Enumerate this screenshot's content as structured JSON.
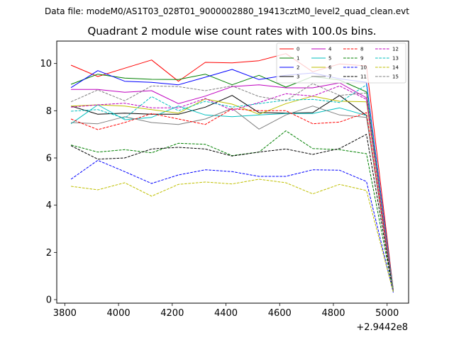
{
  "chart_data": {
    "type": "line",
    "suptitle": "Data file: modeM0/AS1T03_028T01_9000002880_19413cztM0_level2_quad_clean.evt",
    "title": "Quadrant 2 module wise count rates with 100.0s bins.",
    "xlabel": "",
    "ylabel": "",
    "offset_text": "+2.9442e8",
    "xlim": [
      3770,
      5080
    ],
    "ylim": [
      -0.15,
      10.95
    ],
    "xticks": [
      3800,
      4000,
      4200,
      4400,
      4600,
      4800,
      5000
    ],
    "yticks": [
      0,
      2,
      4,
      6,
      8,
      10
    ],
    "grid": false,
    "legend_position": "top-right",
    "x": [
      3823,
      3923,
      4023,
      4123,
      4223,
      4323,
      4423,
      4523,
      4623,
      4723,
      4823,
      4923,
      5023
    ],
    "series": [
      {
        "name": "0",
        "color": "#ff0000",
        "dash": "solid",
        "values": [
          9.93,
          9.45,
          9.8,
          10.15,
          9.25,
          10.05,
          10.03,
          10.12,
          10.42,
          9.65,
          9.98,
          9.9,
          0.42
        ]
      },
      {
        "name": "1",
        "color": "#008000",
        "dash": "solid",
        "values": [
          9.12,
          9.55,
          9.38,
          9.33,
          9.32,
          9.55,
          9.1,
          9.5,
          9.0,
          9.45,
          9.3,
          8.8,
          0.4
        ]
      },
      {
        "name": "2",
        "color": "#0000ff",
        "dash": "solid",
        "values": [
          8.98,
          9.7,
          9.25,
          9.2,
          9.1,
          9.42,
          9.75,
          9.32,
          9.5,
          9.6,
          9.35,
          9.2,
          0.38
        ]
      },
      {
        "name": "3",
        "color": "#000000",
        "dash": "solid",
        "values": [
          8.2,
          7.85,
          7.9,
          7.85,
          7.85,
          8.15,
          8.65,
          7.92,
          7.9,
          7.92,
          8.65,
          7.8,
          0.4
        ]
      },
      {
        "name": "4",
        "color": "#bf00bf",
        "dash": "solid",
        "values": [
          8.9,
          8.9,
          8.78,
          8.85,
          8.3,
          8.62,
          9.02,
          9.1,
          8.97,
          8.97,
          9.18,
          8.55,
          0.38
        ]
      },
      {
        "name": "5",
        "color": "#00bfbf",
        "dash": "solid",
        "values": [
          7.45,
          8.25,
          7.62,
          7.72,
          8.2,
          7.82,
          7.75,
          7.82,
          7.88,
          7.88,
          8.12,
          7.8,
          0.37
        ]
      },
      {
        "name": "6",
        "color": "#bfbf00",
        "dash": "solid",
        "values": [
          8.2,
          8.25,
          8.2,
          8.05,
          7.9,
          8.5,
          8.28,
          7.85,
          8.3,
          8.62,
          8.4,
          8.38,
          0.4
        ]
      },
      {
        "name": "7",
        "color": "#808080",
        "dash": "solid",
        "values": [
          7.5,
          7.45,
          7.75,
          7.5,
          7.42,
          7.65,
          8.1,
          7.22,
          7.82,
          8.2,
          7.82,
          7.72,
          0.36
        ]
      },
      {
        "name": "8",
        "color": "#ff0000",
        "dash": "dashed",
        "values": [
          7.65,
          7.2,
          7.5,
          7.88,
          7.65,
          7.42,
          8.08,
          8.0,
          8.0,
          7.45,
          7.52,
          7.92,
          0.35
        ]
      },
      {
        "name": "9",
        "color": "#008000",
        "dash": "dashed",
        "values": [
          6.55,
          6.25,
          6.35,
          6.22,
          6.62,
          6.58,
          6.1,
          6.25,
          7.15,
          6.4,
          6.35,
          6.18,
          0.33
        ]
      },
      {
        "name": "10",
        "color": "#0000ff",
        "dash": "dashed",
        "values": [
          5.1,
          5.9,
          5.42,
          4.92,
          5.28,
          5.5,
          5.42,
          5.22,
          5.22,
          5.5,
          5.48,
          5.0,
          0.3
        ]
      },
      {
        "name": "11",
        "color": "#000000",
        "dash": "dashed",
        "values": [
          6.52,
          5.95,
          6.0,
          6.38,
          6.45,
          6.38,
          6.08,
          6.25,
          6.38,
          6.15,
          6.4,
          7.0,
          0.34
        ]
      },
      {
        "name": "12",
        "color": "#bf00bf",
        "dash": "dashed",
        "values": [
          8.15,
          8.25,
          8.32,
          8.12,
          8.12,
          8.52,
          8.02,
          8.35,
          8.72,
          8.62,
          9.05,
          8.48,
          0.36
        ]
      },
      {
        "name": "13",
        "color": "#00bfbf",
        "dash": "dashed",
        "values": [
          7.98,
          8.05,
          7.68,
          8.6,
          8.0,
          8.4,
          8.15,
          8.3,
          8.45,
          8.48,
          8.35,
          9.1,
          0.35
        ]
      },
      {
        "name": "14",
        "color": "#bfbf00",
        "dash": "dashed",
        "values": [
          4.8,
          4.65,
          4.95,
          4.38,
          4.88,
          4.98,
          4.9,
          5.1,
          4.95,
          4.48,
          4.88,
          4.62,
          0.32
        ]
      },
      {
        "name": "15",
        "color": "#808080",
        "dash": "dashed",
        "values": [
          8.38,
          8.88,
          8.42,
          9.05,
          9.02,
          8.85,
          9.05,
          8.6,
          8.42,
          9.15,
          8.65,
          8.75,
          0.37
        ]
      }
    ]
  }
}
